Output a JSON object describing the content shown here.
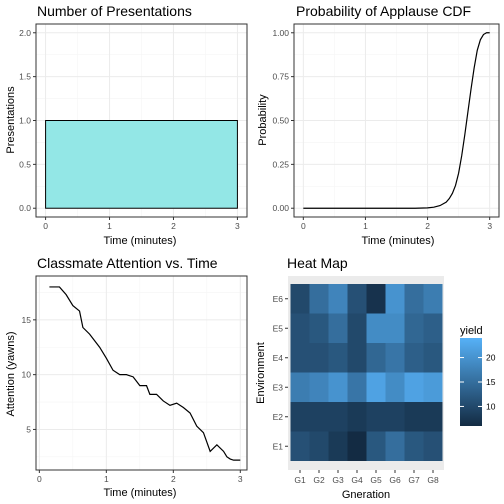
{
  "chart_data": [
    {
      "type": "bar",
      "title": "Number of Presentations",
      "xlabel": "Time (minutes)",
      "ylabel": "Presentations",
      "xlim": [
        -0.15,
        3.15
      ],
      "ylim": [
        -0.1,
        2.1
      ],
      "xticks": [
        "0",
        "1",
        "2",
        "3"
      ],
      "yticks": [
        "0.0",
        "0.5",
        "1.0",
        "1.5",
        "2.0"
      ],
      "bars": [
        {
          "x_start": 0,
          "x_end": 3,
          "value": 1
        }
      ],
      "fill": "#93e7e6",
      "grid": true
    },
    {
      "type": "line",
      "title": "Probability of Applause CDF",
      "xlabel": "Time (minutes)",
      "ylabel": "Probability",
      "xlim": [
        -0.15,
        3.15
      ],
      "ylim": [
        -0.05,
        1.05
      ],
      "xticks": [
        "0",
        "1",
        "2",
        "3"
      ],
      "yticks": [
        "0.00",
        "0.25",
        "0.50",
        "0.75",
        "1.00"
      ],
      "x": [
        0,
        1.0,
        1.8,
        2.0,
        2.1,
        2.2,
        2.3,
        2.35,
        2.4,
        2.45,
        2.5,
        2.55,
        2.6,
        2.65,
        2.7,
        2.75,
        2.8,
        2.85,
        2.9,
        2.95,
        3.0
      ],
      "y": [
        0,
        0,
        0,
        0.002,
        0.006,
        0.015,
        0.035,
        0.055,
        0.085,
        0.13,
        0.2,
        0.3,
        0.42,
        0.55,
        0.68,
        0.8,
        0.9,
        0.96,
        0.99,
        1.0,
        1.0
      ],
      "grid": true
    },
    {
      "type": "line",
      "title": "Classmate Attention vs. Time",
      "xlabel": "Time (minutes)",
      "ylabel": "Attention (yawns)",
      "xlim": [
        -0.05,
        3.1
      ],
      "ylim": [
        1.3,
        19.0
      ],
      "xticks": [
        "0",
        "1",
        "2",
        "3"
      ],
      "yticks": [
        "5",
        "10",
        "15"
      ],
      "x": [
        0.15,
        0.3,
        0.4,
        0.5,
        0.6,
        0.65,
        0.75,
        0.9,
        1.0,
        1.1,
        1.2,
        1.3,
        1.4,
        1.5,
        1.6,
        1.65,
        1.75,
        1.85,
        1.95,
        2.05,
        2.15,
        2.25,
        2.35,
        2.45,
        2.55,
        2.65,
        2.75,
        2.8,
        2.85,
        2.9,
        2.95,
        3.0
      ],
      "y": [
        18.0,
        18.0,
        17.3,
        16.3,
        15.8,
        14.3,
        13.7,
        12.5,
        11.5,
        10.4,
        10.0,
        10.0,
        9.8,
        9.0,
        9.0,
        8.2,
        8.2,
        7.6,
        7.2,
        7.4,
        7.0,
        6.5,
        5.3,
        4.7,
        3.0,
        3.6,
        3.0,
        2.5,
        2.3,
        2.2,
        2.2,
        2.2
      ],
      "grid": true
    },
    {
      "type": "heatmap",
      "title": "Heat Map",
      "xlabel": "Gneration",
      "ylabel": "Environment",
      "x_categories": [
        "G1",
        "G2",
        "G3",
        "G4",
        "G5",
        "G6",
        "G7",
        "G8"
      ],
      "y_categories": [
        "E1",
        "E2",
        "E3",
        "E4",
        "E5",
        "E6"
      ],
      "values": [
        [
          11,
          10,
          8,
          6,
          12,
          15,
          12,
          11
        ],
        [
          9,
          9,
          9,
          8,
          9,
          9,
          8,
          8
        ],
        [
          17,
          18,
          20,
          16,
          22,
          19,
          22,
          21
        ],
        [
          11,
          11,
          12,
          10,
          14,
          16,
          13,
          12
        ],
        [
          11,
          12,
          15,
          10,
          19,
          19,
          14,
          13
        ],
        [
          10,
          15,
          18,
          11,
          7,
          20,
          15,
          17
        ]
      ],
      "legend": {
        "title": "yield",
        "ticks": [
          "10",
          "15",
          "20"
        ],
        "min": 6,
        "max": 24,
        "low_color": "#132b43",
        "high_color": "#56b1f7",
        "position": "right"
      }
    }
  ],
  "colors": {
    "panel_bg": "#ffffff",
    "panel_border": "#333333",
    "grid_major": "#ebebeb",
    "grid_minor": "#f5f5f5",
    "line": "#000000",
    "heat_panel_bg": "#ebebeb"
  }
}
